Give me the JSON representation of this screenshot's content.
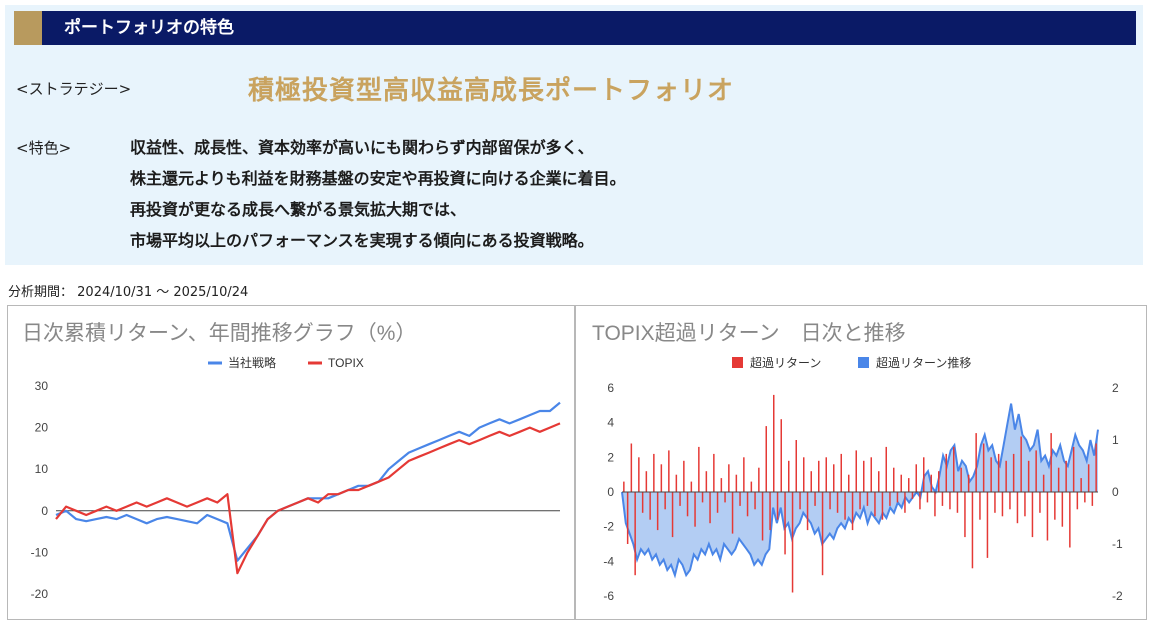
{
  "banner": {
    "title": "ポートフォリオの特色"
  },
  "strategy": {
    "label": "<ストラテジー>",
    "value": "積極投資型高収益高成長ポートフォリオ"
  },
  "features": {
    "label": "<特色>",
    "lines": [
      "収益性、成長性、資本効率が高いにも関わらず内部留保が多く、",
      "株主還元よりも利益を財務基盤の安定や再投資に向ける企業に着目。",
      "再投資が更なる成長へ繋がる景気拡大期では、",
      "市場平均以上のパフォーマンスを実現する傾向にある投資戦略。"
    ]
  },
  "period": {
    "label": "分析期間：",
    "range": "2024/10/31 〜 2025/10/24"
  },
  "colors": {
    "navy": "#0a1a66",
    "gold": "#c9a35f",
    "blue": "#4a86e8",
    "red": "#e53935",
    "area": "#b3cdf3"
  },
  "chart_data": [
    {
      "type": "line",
      "title": "日次累積リターン、年間推移グラフ（%）",
      "xlabel": "",
      "ylabel": "",
      "ylim": [
        -20,
        30
      ],
      "yticks": [
        -20,
        -10,
        0,
        10,
        20,
        30
      ],
      "grid": false,
      "legend": "top-center",
      "series": [
        {
          "name": "当社戦略",
          "color": "#4a86e8",
          "x": [
            0,
            2,
            4,
            6,
            8,
            10,
            12,
            14,
            16,
            18,
            20,
            22,
            24,
            26,
            28,
            30,
            32,
            34,
            36,
            38,
            40,
            42,
            44,
            46,
            48,
            50,
            52,
            54,
            56,
            58,
            60,
            62,
            64,
            66,
            68,
            70,
            72,
            74,
            76,
            78,
            80,
            82,
            84,
            86,
            88,
            90,
            92,
            94,
            96,
            98,
            100
          ],
          "values": [
            -1,
            0,
            -2,
            -2.5,
            -2,
            -1.5,
            -2,
            -1,
            -2,
            -3,
            -2,
            -1.5,
            -2,
            -2.5,
            -3,
            -1,
            -2,
            -3,
            -12,
            -9,
            -6,
            -2,
            0,
            1,
            2,
            3,
            3,
            3,
            4,
            5,
            6,
            6,
            7,
            10,
            12,
            14,
            15,
            16,
            17,
            18,
            19,
            18,
            20,
            21,
            22,
            21,
            22,
            23,
            24,
            24,
            26
          ]
        },
        {
          "name": "TOPIX",
          "color": "#e53935",
          "x": [
            0,
            2,
            4,
            6,
            8,
            10,
            12,
            14,
            16,
            18,
            20,
            22,
            24,
            26,
            28,
            30,
            32,
            34,
            36,
            38,
            40,
            42,
            44,
            46,
            48,
            50,
            52,
            54,
            56,
            58,
            60,
            62,
            64,
            66,
            68,
            70,
            72,
            74,
            76,
            78,
            80,
            82,
            84,
            86,
            88,
            90,
            92,
            94,
            96,
            98,
            100
          ],
          "values": [
            -2,
            1,
            0,
            -1,
            0,
            1,
            0,
            1,
            2,
            1,
            2,
            3,
            2,
            1,
            2,
            3,
            2,
            4,
            -15,
            -10,
            -6,
            -2,
            0,
            1,
            2,
            3,
            2,
            4,
            4,
            5,
            5,
            6,
            7,
            8,
            10,
            12,
            13,
            14,
            15,
            16,
            17,
            16,
            17,
            18,
            19,
            18,
            19,
            20,
            19,
            20,
            21
          ]
        }
      ]
    },
    {
      "type": "bar",
      "title": "TOPIX超過リターン　日次と推移",
      "xlabel": "",
      "ylabel": "",
      "ylim": [
        -6,
        6
      ],
      "yticks": [
        -6,
        -4,
        -2,
        0,
        2,
        4,
        6
      ],
      "y2lim": [
        -2,
        2
      ],
      "y2ticks": [
        -2,
        -1,
        0,
        1,
        2
      ],
      "grid": false,
      "legend": "top-center",
      "series": [
        {
          "name": "超過リターン",
          "color": "#e53935",
          "axis": "left",
          "values": [
            0.6,
            -3.0,
            2.8,
            -4.8,
            2.0,
            -1.2,
            1.2,
            -1.6,
            2.2,
            -2.2,
            1.6,
            -1.0,
            2.4,
            -2.6,
            1.0,
            -0.8,
            1.8,
            -1.4,
            0.6,
            -2.0,
            2.6,
            -0.6,
            1.2,
            -1.8,
            2.2,
            -1.2,
            0.8,
            -0.6,
            1.6,
            -2.4,
            1.0,
            -0.8,
            2.0,
            -1.4,
            0.6,
            -1.0,
            1.4,
            -2.8,
            3.8,
            -2.2,
            5.6,
            -1.6,
            4.2,
            -3.6,
            1.8,
            -5.8,
            3.0,
            -1.0,
            2.0,
            -2.2,
            1.2,
            -0.8,
            1.8,
            -4.8,
            2.0,
            -1.0,
            1.6,
            -1.2,
            2.2,
            -1.6,
            1.0,
            -2.2,
            2.4,
            -1.0,
            1.8,
            -0.8,
            2.0,
            -1.4,
            1.2,
            -1.6,
            2.6,
            -0.8,
            1.4,
            -0.6,
            1.0,
            -1.2,
            0.8,
            -0.4,
            1.6,
            -1.0,
            2.0,
            -0.6,
            1.0,
            -1.4,
            1.2,
            -0.8,
            2.2,
            -1.0,
            2.6,
            -1.2,
            1.4,
            -2.6,
            1.0,
            -4.4,
            3.4,
            -1.6,
            2.8,
            -3.8,
            2.0,
            -1.2,
            2.2,
            -1.4,
            1.8,
            -1.0,
            2.2,
            -1.8,
            3.2,
            -1.4,
            1.8,
            -2.6,
            2.4,
            -1.2,
            1.0,
            -2.8,
            3.4,
            -1.6,
            1.4,
            -2.0,
            1.8,
            -3.2,
            2.6,
            -1.0,
            0.8,
            -0.6,
            1.6,
            -0.8,
            2.8
          ]
        },
        {
          "name": "超過リターン推移",
          "color": "#4a86e8",
          "axis": "right",
          "type": "area",
          "values": [
            0.0,
            -0.6,
            -0.8,
            -1.0,
            -1.3,
            -1.1,
            -1.2,
            -1.1,
            -1.3,
            -1.2,
            -1.4,
            -1.3,
            -1.5,
            -1.4,
            -1.6,
            -1.3,
            -1.4,
            -1.6,
            -1.5,
            -1.2,
            -1.3,
            -1.1,
            -1.2,
            -1.0,
            -1.2,
            -1.1,
            -1.3,
            -1.0,
            -1.1,
            -1.2,
            -1.1,
            -0.9,
            -1.0,
            -1.1,
            -1.2,
            -1.4,
            -1.3,
            -1.4,
            -1.2,
            -1.1,
            -0.3,
            -0.6,
            -0.3,
            -0.7,
            -0.6,
            -0.9,
            -0.7,
            -0.6,
            -0.4,
            -0.5,
            -0.6,
            -0.8,
            -0.7,
            -1.0,
            -0.9,
            -0.8,
            -0.9,
            -0.7,
            -0.6,
            -0.7,
            -0.5,
            -0.6,
            -0.4,
            -0.5,
            -0.3,
            -0.6,
            -0.4,
            -0.5,
            -0.6,
            -0.4,
            -0.5,
            -0.3,
            -0.4,
            -0.2,
            -0.3,
            -0.1,
            -0.2,
            -0.1,
            0.0,
            -0.1,
            0.3,
            0.4,
            0.1,
            0.0,
            0.3,
            0.7,
            0.5,
            0.8,
            0.9,
            0.4,
            0.6,
            0.5,
            0.2,
            0.3,
            0.5,
            0.9,
            1.1,
            0.8,
            0.9,
            0.6,
            0.5,
            0.9,
            1.3,
            1.7,
            1.2,
            1.5,
            1.1,
            1.0,
            0.8,
            0.9,
            1.2,
            0.6,
            0.7,
            0.5,
            0.8,
            0.7,
            0.9,
            0.6,
            0.5,
            0.8,
            1.1,
            0.9,
            0.8,
            0.6,
            1.0,
            0.7,
            1.2
          ]
        }
      ]
    }
  ]
}
